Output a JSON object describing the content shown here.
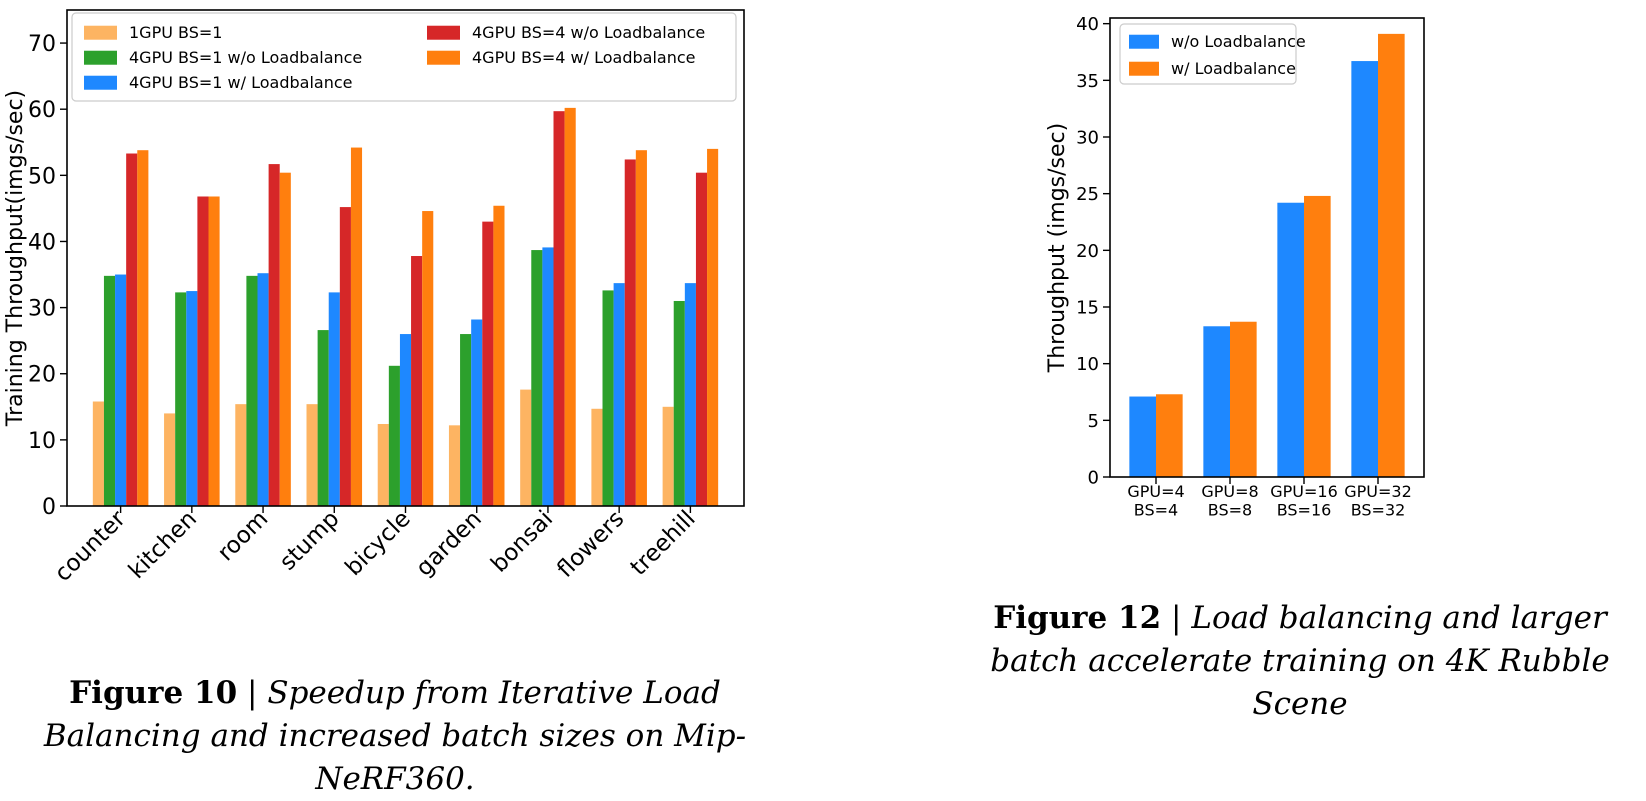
{
  "chart_data": [
    {
      "type": "bar",
      "ylabel": "Training Throughput(imgs/sec)",
      "xlabel": "",
      "ylim": [
        0,
        75
      ],
      "yticks": [
        0,
        10,
        20,
        30,
        40,
        50,
        60,
        70
      ],
      "grid": false,
      "legend_position": "top-left",
      "legend_columns": 2,
      "categories": [
        "counter",
        "kitchen",
        "room",
        "stump",
        "bicycle",
        "garden",
        "bonsai",
        "flowers",
        "treehill"
      ],
      "series": [
        {
          "name": "1GPU BS=1",
          "color": "#fdb462",
          "values": [
            15.8,
            14.0,
            15.4,
            15.4,
            12.4,
            12.2,
            17.6,
            14.7,
            15.0
          ]
        },
        {
          "name": "4GPU BS=1 w/o  Loadbalance",
          "color": "#2ca02c",
          "values": [
            34.8,
            32.3,
            34.8,
            26.6,
            21.2,
            26.0,
            38.7,
            32.6,
            31.0
          ]
        },
        {
          "name": "4GPU BS=1 w/ Loadbalance",
          "color": "#1e88ff",
          "values": [
            35.0,
            32.5,
            35.2,
            32.3,
            26.0,
            28.2,
            39.1,
            33.7,
            33.7
          ]
        },
        {
          "name": "4GPU BS=4 w/o Loadbalance",
          "color": "#d62728",
          "values": [
            53.3,
            46.8,
            51.7,
            45.2,
            37.8,
            43.0,
            59.7,
            52.4,
            50.4
          ]
        },
        {
          "name": "4GPU BS=4 w/ Loadbalance",
          "color": "#ff7f0e",
          "values": [
            53.8,
            46.8,
            50.4,
            54.2,
            44.6,
            45.4,
            60.2,
            53.8,
            54.0
          ]
        }
      ]
    },
    {
      "type": "bar",
      "ylabel": "Throughput (imgs/sec)",
      "xlabel": "",
      "ylim": [
        0,
        40.5
      ],
      "yticks": [
        0,
        5,
        10,
        15,
        20,
        25,
        30,
        35,
        40
      ],
      "grid": false,
      "legend_position": "top-left",
      "categories": [
        [
          "GPU=4",
          "BS=4"
        ],
        [
          "GPU=8",
          "BS=8"
        ],
        [
          "GPU=16",
          "BS=16"
        ],
        [
          "GPU=32",
          "BS=32"
        ]
      ],
      "series": [
        {
          "name": "w/o Loadbalance",
          "color": "#1e88ff",
          "values": [
            7.1,
            13.3,
            24.2,
            36.7
          ]
        },
        {
          "name": "w/ Loadbalance",
          "color": "#ff7f0e",
          "values": [
            7.3,
            13.7,
            24.8,
            39.1
          ]
        }
      ]
    }
  ],
  "captions": {
    "fig10": {
      "label": "Figure 10",
      "separator": "|",
      "text": "Speedup from Iterative Load Balancing and increased batch sizes on Mip-NeRF360."
    },
    "fig12": {
      "label": "Figure 12",
      "separator": "|",
      "text": "Load balancing and larger batch accelerate training on 4K Rubble Scene"
    }
  }
}
